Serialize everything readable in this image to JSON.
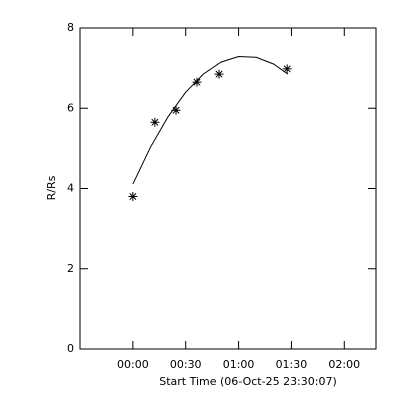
{
  "chart_data": {
    "type": "scatter",
    "x_label": "Start Time (06-Oct-25 23:30:07)",
    "y_label": "R/Rs",
    "xlim": [
      -30,
      138
    ],
    "ylim": [
      0,
      8
    ],
    "xticks": [
      {
        "value": 0,
        "label": "00:00"
      },
      {
        "value": 30,
        "label": "00:30"
      },
      {
        "value": 60,
        "label": "01:00"
      },
      {
        "value": 90,
        "label": "01:30"
      },
      {
        "value": 120,
        "label": "02:00"
      }
    ],
    "yticks": [
      0,
      2,
      4,
      6,
      8
    ],
    "color": "#000000",
    "x": [
      0,
      12.5,
      24.5,
      36.4,
      48.9,
      87.6
    ],
    "values": [
      3.8,
      5.65,
      5.95,
      6.65,
      6.85,
      6.98
    ],
    "fit": {
      "x": [
        0,
        10,
        20,
        30,
        40,
        50,
        60,
        70,
        80,
        88
      ],
      "values": [
        4.11,
        5.03,
        5.79,
        6.4,
        6.85,
        7.15,
        7.29,
        7.27,
        7.1,
        6.85
      ]
    }
  }
}
